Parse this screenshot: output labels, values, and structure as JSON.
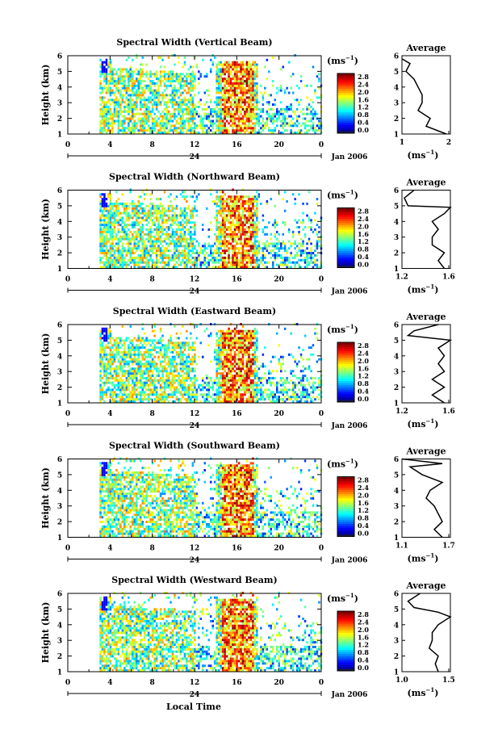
{
  "figure": {
    "xlabel": "Local Time",
    "date_label": "Jan 2006",
    "day_label": "24"
  },
  "chart_data": [
    {
      "type": "heatmap",
      "title": "Spectral Width (Vertical Beam)",
      "ylabel": "Height (km)",
      "xlim": [
        0,
        24
      ],
      "ylim": [
        1,
        6
      ],
      "x_ticks": [
        "0",
        "4",
        "8",
        "12",
        "16",
        "20",
        "0"
      ],
      "y_ticks": [
        "1",
        "2",
        "3",
        "4",
        "5",
        "6"
      ],
      "colorbar": {
        "unit": "(ms",
        "exp": "−1",
        "unit_close": ")",
        "ticks": [
          "0.0",
          "0.4",
          "0.8",
          "1.2",
          "1.6",
          "2.0",
          "2.4",
          "2.8"
        ]
      },
      "average": {
        "title": "Average",
        "xlim": [
          1,
          2.2
        ],
        "x_ticks": [
          "1",
          "2"
        ],
        "xlabel": "(ms",
        "xlabel_exp": "−1",
        "xlabel_close": ")",
        "profile": [
          [
            2.1,
            1.0
          ],
          [
            1.6,
            1.5
          ],
          [
            1.7,
            2.0
          ],
          [
            1.4,
            2.5
          ],
          [
            1.5,
            3.0
          ],
          [
            1.5,
            3.5
          ],
          [
            1.4,
            4.0
          ],
          [
            1.3,
            4.5
          ],
          [
            1.1,
            5.0
          ],
          [
            1.2,
            5.5
          ],
          [
            1.0,
            5.8
          ]
        ]
      }
    },
    {
      "type": "heatmap",
      "title": "Spectral Width (Northward Beam)",
      "ylabel": "Height (km)",
      "xlim": [
        0,
        24
      ],
      "ylim": [
        1,
        6
      ],
      "x_ticks": [
        "0",
        "4",
        "8",
        "12",
        "16",
        "20",
        "0"
      ],
      "y_ticks": [
        "1",
        "2",
        "3",
        "4",
        "5",
        "6"
      ],
      "colorbar": {
        "unit": "(ms",
        "exp": "−1",
        "unit_close": ")",
        "ticks": [
          "0.0",
          "0.4",
          "0.8",
          "1.2",
          "1.6",
          "2.0",
          "2.4",
          "2.8"
        ]
      },
      "average": {
        "title": "Average",
        "xlim": [
          1.2,
          1.6
        ],
        "x_ticks": [
          "1.2",
          "1.6"
        ],
        "xlabel": "(ms",
        "xlabel_exp": "−1",
        "xlabel_close": ")",
        "profile": [
          [
            1.55,
            1.0
          ],
          [
            1.5,
            1.5
          ],
          [
            1.55,
            2.0
          ],
          [
            1.45,
            2.5
          ],
          [
            1.45,
            3.0
          ],
          [
            1.5,
            3.5
          ],
          [
            1.45,
            4.0
          ],
          [
            1.55,
            4.5
          ],
          [
            1.6,
            4.9
          ],
          [
            1.25,
            5.0
          ],
          [
            1.22,
            5.5
          ],
          [
            1.3,
            6.0
          ]
        ]
      }
    },
    {
      "type": "heatmap",
      "title": "Spectral Width (Eastward Beam)",
      "ylabel": "Height (km)",
      "xlim": [
        0,
        24
      ],
      "ylim": [
        1,
        6
      ],
      "x_ticks": [
        "0",
        "4",
        "8",
        "12",
        "16",
        "20",
        "0"
      ],
      "y_ticks": [
        "1",
        "2",
        "3",
        "4",
        "5",
        "6"
      ],
      "colorbar": {
        "unit": "(ms",
        "exp": "−1",
        "unit_close": ")",
        "ticks": [
          "0.0",
          "0.4",
          "0.8",
          "1.2",
          "1.6",
          "2.0",
          "2.4",
          "2.8"
        ]
      },
      "average": {
        "title": "Average",
        "xlim": [
          1.2,
          1.6
        ],
        "x_ticks": [
          "1.2",
          "1.6"
        ],
        "xlabel": "(ms",
        "xlabel_exp": "−1",
        "xlabel_close": ")",
        "profile": [
          [
            1.55,
            1.0
          ],
          [
            1.45,
            1.5
          ],
          [
            1.55,
            2.0
          ],
          [
            1.45,
            2.5
          ],
          [
            1.55,
            3.0
          ],
          [
            1.5,
            3.5
          ],
          [
            1.55,
            4.0
          ],
          [
            1.5,
            4.5
          ],
          [
            1.6,
            5.0
          ],
          [
            1.25,
            5.3
          ],
          [
            1.3,
            5.6
          ],
          [
            1.5,
            6.0
          ]
        ]
      }
    },
    {
      "type": "heatmap",
      "title": "Spectral Width (Southward Beam)",
      "ylabel": "Height (km)",
      "xlim": [
        0,
        24
      ],
      "ylim": [
        1,
        6
      ],
      "x_ticks": [
        "0",
        "4",
        "8",
        "12",
        "16",
        "20",
        "0"
      ],
      "y_ticks": [
        "1",
        "2",
        "3",
        "4",
        "5",
        "6"
      ],
      "colorbar": {
        "unit": "(ms",
        "exp": "−1",
        "unit_close": ")",
        "ticks": [
          "0.0",
          "0.4",
          "0.8",
          "1.2",
          "1.6",
          "2.0",
          "2.4",
          "2.8"
        ]
      },
      "average": {
        "title": "Average",
        "xlim": [
          1.1,
          1.7
        ],
        "x_ticks": [
          "1.1",
          "1.7"
        ],
        "xlabel": "(ms",
        "xlabel_exp": "−1",
        "xlabel_close": ")",
        "profile": [
          [
            1.6,
            1.0
          ],
          [
            1.5,
            1.5
          ],
          [
            1.6,
            2.0
          ],
          [
            1.55,
            2.5
          ],
          [
            1.5,
            3.0
          ],
          [
            1.4,
            3.5
          ],
          [
            1.45,
            4.0
          ],
          [
            1.6,
            4.5
          ],
          [
            1.35,
            5.0
          ],
          [
            1.2,
            5.5
          ],
          [
            1.6,
            5.7
          ],
          [
            1.1,
            6.0
          ]
        ]
      }
    },
    {
      "type": "heatmap",
      "title": "Spectral Width (Westward Beam)",
      "ylabel": "Height (km)",
      "xlim": [
        0,
        24
      ],
      "ylim": [
        1,
        6
      ],
      "x_ticks": [
        "0",
        "4",
        "8",
        "12",
        "16",
        "20",
        "0"
      ],
      "y_ticks": [
        "1",
        "2",
        "3",
        "4",
        "5",
        "6"
      ],
      "colorbar": {
        "unit": "(ms",
        "exp": "−1",
        "unit_close": ")",
        "ticks": [
          "0.0",
          "0.4",
          "0.8",
          "1.2",
          "1.6",
          "2.0",
          "2.4",
          "2.8"
        ]
      },
      "average": {
        "title": "Average",
        "xlim": [
          1.0,
          1.8
        ],
        "x_ticks": [
          "1.0",
          "1.5"
        ],
        "xlabel": "(ms",
        "xlabel_exp": "−1",
        "xlabel_close": ")",
        "profile": [
          [
            1.6,
            1.0
          ],
          [
            1.55,
            1.5
          ],
          [
            1.6,
            2.0
          ],
          [
            1.45,
            2.5
          ],
          [
            1.5,
            3.0
          ],
          [
            1.5,
            3.5
          ],
          [
            1.6,
            4.0
          ],
          [
            1.8,
            4.5
          ],
          [
            1.6,
            4.8
          ],
          [
            1.2,
            5.1
          ],
          [
            1.1,
            5.5
          ],
          [
            1.3,
            6.0
          ]
        ]
      }
    }
  ]
}
